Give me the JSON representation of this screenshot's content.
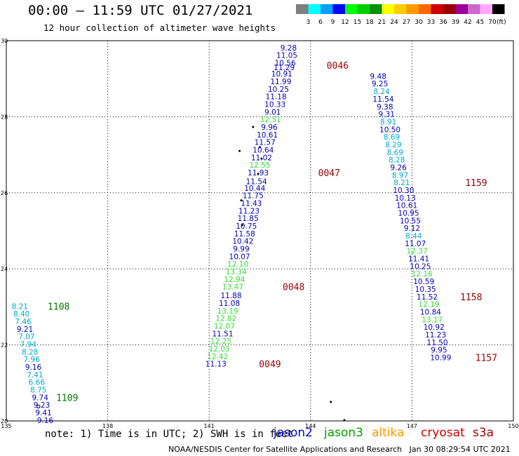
{
  "header": {
    "title": "00:00 – 11:59 UTC 01/27/2021",
    "subtitle": "12 hour collection of altimeter wave heights"
  },
  "legend": {
    "bins": [
      "3",
      "6",
      "9",
      "12",
      "15",
      "18",
      "21",
      "24",
      "27",
      "30",
      "33",
      "36",
      "39",
      "42",
      "45",
      "70"
    ],
    "colors": [
      "#7f7f7f",
      "#00ffff",
      "#00a0ff",
      "#0000ff",
      "#00ff00",
      "#00cc00",
      "#009000",
      "#ffff00",
      "#ffcc00",
      "#ff9900",
      "#ff6600",
      "#cc0000",
      "#990000",
      "#990099",
      "#cc66cc",
      "#ffaaff",
      "#000000"
    ],
    "unit": "(ft)"
  },
  "footer": {
    "note": "note: 1) Time is in UTC; 2) SWH is in feet",
    "credit": "NOAA/NESDIS Center for Satellite Applications and Research   Jan 30 08:29:54 UTC 2021",
    "satellites": [
      {
        "name": "jason2",
        "color": "#0000cc"
      },
      {
        "name": "jason3",
        "color": "#00a000"
      },
      {
        "name": "altika",
        "color": "#ff9900"
      },
      {
        "name": "cryosat",
        "color": "#cc0000"
      },
      {
        "name": "s3a",
        "color": "#990000"
      }
    ]
  },
  "chart_data": {
    "type": "scatter",
    "xlim": [
      135,
      150
    ],
    "ylim": [
      20,
      30
    ],
    "x_ticks": [
      "135",
      "138",
      "141",
      "144",
      "147",
      "150"
    ],
    "y_ticks": [
      "20",
      "22",
      "24",
      "26",
      "28",
      "30"
    ],
    "grid": true,
    "color_map": {
      "dark-blue": "#0000bb",
      "cyan": "#00aacc",
      "light-green": "#33dd33",
      "dark-red": "#990000",
      "dark-green": "#007700"
    },
    "tracks": [
      {
        "name": "track-a",
        "points": [
          {
            "lon": 143.35,
            "lat": 29.82,
            "v": "9.28",
            "c": "dark-blue"
          },
          {
            "lon": 143.3,
            "lat": 29.62,
            "v": "11.05",
            "c": "dark-blue"
          },
          {
            "lon": 143.25,
            "lat": 29.42,
            "v": "10.56",
            "c": "dark-blue"
          },
          {
            "lon": 143.22,
            "lat": 29.3,
            "v": "11.29",
            "c": "dark-blue"
          },
          {
            "lon": 143.15,
            "lat": 29.13,
            "v": "10.91",
            "c": "dark-blue"
          },
          {
            "lon": 143.12,
            "lat": 28.93,
            "v": "11.99",
            "c": "dark-blue"
          },
          {
            "lon": 143.05,
            "lat": 28.73,
            "v": "10.25",
            "c": "dark-blue"
          },
          {
            "lon": 142.98,
            "lat": 28.53,
            "v": "11.18",
            "c": "dark-blue"
          },
          {
            "lon": 142.95,
            "lat": 28.33,
            "v": "10.33",
            "c": "dark-blue"
          },
          {
            "lon": 142.88,
            "lat": 28.13,
            "v": "9.01",
            "c": "dark-blue"
          },
          {
            "lon": 142.82,
            "lat": 27.93,
            "v": "12.51",
            "c": "light-green"
          },
          {
            "lon": 142.78,
            "lat": 27.73,
            "v": "9.96",
            "c": "dark-blue"
          },
          {
            "lon": 142.72,
            "lat": 27.53,
            "v": "10.61",
            "c": "dark-blue"
          },
          {
            "lon": 142.65,
            "lat": 27.33,
            "v": "11.57",
            "c": "dark-blue"
          },
          {
            "lon": 142.6,
            "lat": 27.13,
            "v": "10.64",
            "c": "dark-blue"
          },
          {
            "lon": 142.55,
            "lat": 26.93,
            "v": "11.02",
            "c": "dark-blue"
          },
          {
            "lon": 142.5,
            "lat": 26.73,
            "v": "12.55",
            "c": "light-green"
          },
          {
            "lon": 142.45,
            "lat": 26.53,
            "v": "11.93",
            "c": "dark-blue"
          },
          {
            "lon": 142.4,
            "lat": 26.3,
            "v": "11.54",
            "c": "dark-blue"
          },
          {
            "lon": 142.35,
            "lat": 26.13,
            "v": "10.44",
            "c": "dark-blue"
          },
          {
            "lon": 142.3,
            "lat": 25.93,
            "v": "11.75",
            "c": "dark-blue"
          },
          {
            "lon": 142.25,
            "lat": 25.73,
            "v": "11.43",
            "c": "dark-blue"
          },
          {
            "lon": 142.18,
            "lat": 25.53,
            "v": "11.23",
            "c": "dark-blue"
          },
          {
            "lon": 142.15,
            "lat": 25.33,
            "v": "11.85",
            "c": "dark-blue"
          },
          {
            "lon": 142.1,
            "lat": 25.13,
            "v": "10.75",
            "c": "dark-blue"
          },
          {
            "lon": 142.05,
            "lat": 24.93,
            "v": "11.58",
            "c": "dark-blue"
          },
          {
            "lon": 142.0,
            "lat": 24.73,
            "v": "10.42",
            "c": "dark-blue"
          },
          {
            "lon": 141.95,
            "lat": 24.53,
            "v": "9.99",
            "c": "dark-blue"
          },
          {
            "lon": 141.9,
            "lat": 24.33,
            "v": "10.07",
            "c": "dark-blue"
          },
          {
            "lon": 141.85,
            "lat": 24.13,
            "v": "12.10",
            "c": "light-green"
          },
          {
            "lon": 141.8,
            "lat": 23.93,
            "v": "13.34",
            "c": "light-green"
          },
          {
            "lon": 141.75,
            "lat": 23.73,
            "v": "12.94",
            "c": "light-green"
          },
          {
            "lon": 141.7,
            "lat": 23.53,
            "v": "13.47",
            "c": "light-green"
          },
          {
            "lon": 141.65,
            "lat": 23.3,
            "v": "11.88",
            "c": "dark-blue"
          },
          {
            "lon": 141.6,
            "lat": 23.1,
            "v": "11.08",
            "c": "dark-blue"
          },
          {
            "lon": 141.55,
            "lat": 22.9,
            "v": "13.19",
            "c": "light-green"
          },
          {
            "lon": 141.5,
            "lat": 22.7,
            "v": "12.82",
            "c": "light-green"
          },
          {
            "lon": 141.45,
            "lat": 22.5,
            "v": "12.07",
            "c": "light-green"
          },
          {
            "lon": 141.4,
            "lat": 22.3,
            "v": "11.51",
            "c": "dark-blue"
          },
          {
            "lon": 141.35,
            "lat": 22.1,
            "v": "12.25",
            "c": "light-green"
          },
          {
            "lon": 141.3,
            "lat": 21.9,
            "v": "12.03",
            "c": "light-green"
          },
          {
            "lon": 141.25,
            "lat": 21.7,
            "v": "12.42",
            "c": "light-green"
          },
          {
            "lon": 141.2,
            "lat": 21.5,
            "v": "11.13",
            "c": "dark-blue"
          }
        ]
      },
      {
        "name": "track-b",
        "points": [
          {
            "lon": 146.0,
            "lat": 29.07,
            "v": "9.48",
            "c": "dark-blue"
          },
          {
            "lon": 146.05,
            "lat": 28.87,
            "v": "9.25",
            "c": "dark-blue"
          },
          {
            "lon": 146.1,
            "lat": 28.67,
            "v": "8.24",
            "c": "cyan"
          },
          {
            "lon": 146.15,
            "lat": 28.47,
            "v": "11.54",
            "c": "dark-blue"
          },
          {
            "lon": 146.2,
            "lat": 28.27,
            "v": "9.38",
            "c": "dark-blue"
          },
          {
            "lon": 146.25,
            "lat": 28.07,
            "v": "9.31",
            "c": "dark-blue"
          },
          {
            "lon": 146.3,
            "lat": 27.87,
            "v": "8.91",
            "c": "cyan"
          },
          {
            "lon": 146.35,
            "lat": 27.67,
            "v": "10.50",
            "c": "dark-blue"
          },
          {
            "lon": 146.4,
            "lat": 27.47,
            "v": "8.69",
            "c": "cyan"
          },
          {
            "lon": 146.45,
            "lat": 27.27,
            "v": "8.29",
            "c": "cyan"
          },
          {
            "lon": 146.5,
            "lat": 27.07,
            "v": "8.69",
            "c": "cyan"
          },
          {
            "lon": 146.55,
            "lat": 26.87,
            "v": "8.28",
            "c": "cyan"
          },
          {
            "lon": 146.6,
            "lat": 26.67,
            "v": "9.26",
            "c": "dark-blue"
          },
          {
            "lon": 146.65,
            "lat": 26.47,
            "v": "8.97",
            "c": "cyan"
          },
          {
            "lon": 146.7,
            "lat": 26.27,
            "v": "8.21",
            "c": "cyan"
          },
          {
            "lon": 146.75,
            "lat": 26.07,
            "v": "10.30",
            "c": "dark-blue"
          },
          {
            "lon": 146.8,
            "lat": 25.87,
            "v": "10.13",
            "c": "dark-blue"
          },
          {
            "lon": 146.85,
            "lat": 25.67,
            "v": "10.61",
            "c": "dark-blue"
          },
          {
            "lon": 146.9,
            "lat": 25.47,
            "v": "10.95",
            "c": "dark-blue"
          },
          {
            "lon": 146.95,
            "lat": 25.27,
            "v": "10.55",
            "c": "dark-blue"
          },
          {
            "lon": 147.0,
            "lat": 25.07,
            "v": "9.12",
            "c": "dark-blue"
          },
          {
            "lon": 147.05,
            "lat": 24.87,
            "v": "8.44",
            "c": "cyan"
          },
          {
            "lon": 147.1,
            "lat": 24.67,
            "v": "11.07",
            "c": "dark-blue"
          },
          {
            "lon": 147.15,
            "lat": 24.47,
            "v": "12.37",
            "c": "light-green"
          },
          {
            "lon": 147.2,
            "lat": 24.27,
            "v": "11.41",
            "c": "dark-blue"
          },
          {
            "lon": 147.25,
            "lat": 24.07,
            "v": "10.25",
            "c": "dark-blue"
          },
          {
            "lon": 147.3,
            "lat": 23.87,
            "v": "12.16",
            "c": "light-green"
          },
          {
            "lon": 147.35,
            "lat": 23.67,
            "v": "10.59",
            "c": "dark-blue"
          },
          {
            "lon": 147.4,
            "lat": 23.47,
            "v": "10.35",
            "c": "dark-blue"
          },
          {
            "lon": 147.45,
            "lat": 23.27,
            "v": "11.52",
            "c": "dark-blue"
          },
          {
            "lon": 147.5,
            "lat": 23.07,
            "v": "12.19",
            "c": "light-green"
          },
          {
            "lon": 147.55,
            "lat": 22.87,
            "v": "10.84",
            "c": "dark-blue"
          },
          {
            "lon": 147.6,
            "lat": 22.67,
            "v": "13.17",
            "c": "light-green"
          },
          {
            "lon": 147.65,
            "lat": 22.47,
            "v": "10.92",
            "c": "dark-blue"
          },
          {
            "lon": 147.7,
            "lat": 22.27,
            "v": "11.23",
            "c": "dark-blue"
          },
          {
            "lon": 147.75,
            "lat": 22.07,
            "v": "11.50",
            "c": "dark-blue"
          },
          {
            "lon": 147.8,
            "lat": 21.87,
            "v": "9.95",
            "c": "dark-blue"
          },
          {
            "lon": 147.85,
            "lat": 21.67,
            "v": "10.99",
            "c": "dark-blue"
          }
        ]
      },
      {
        "name": "track-c",
        "points": [
          {
            "lon": 135.4,
            "lat": 23.02,
            "v": "8.21",
            "c": "cyan"
          },
          {
            "lon": 135.45,
            "lat": 22.82,
            "v": "8.40",
            "c": "cyan"
          },
          {
            "lon": 135.5,
            "lat": 22.62,
            "v": "7.46",
            "c": "cyan"
          },
          {
            "lon": 135.55,
            "lat": 22.42,
            "v": "9.21",
            "c": "dark-blue"
          },
          {
            "lon": 135.6,
            "lat": 22.22,
            "v": "7.07",
            "c": "cyan"
          },
          {
            "lon": 135.65,
            "lat": 22.02,
            "v": "7.94",
            "c": "cyan"
          },
          {
            "lon": 135.7,
            "lat": 21.82,
            "v": "8.28",
            "c": "cyan"
          },
          {
            "lon": 135.75,
            "lat": 21.62,
            "v": "7.96",
            "c": "cyan"
          },
          {
            "lon": 135.8,
            "lat": 21.42,
            "v": "9.16",
            "c": "dark-blue"
          },
          {
            "lon": 135.85,
            "lat": 21.22,
            "v": "7.41",
            "c": "cyan"
          },
          {
            "lon": 135.9,
            "lat": 21.02,
            "v": "6.66",
            "c": "cyan"
          },
          {
            "lon": 135.95,
            "lat": 20.82,
            "v": "8.75",
            "c": "cyan"
          },
          {
            "lon": 136.0,
            "lat": 20.62,
            "v": "9.74",
            "c": "dark-blue"
          },
          {
            "lon": 136.05,
            "lat": 20.42,
            "v": "9.23",
            "c": "dark-blue"
          },
          {
            "lon": 136.1,
            "lat": 20.22,
            "v": "9.41",
            "c": "dark-blue"
          },
          {
            "lon": 136.15,
            "lat": 20.02,
            "v": "9.16",
            "c": "dark-blue"
          }
        ]
      }
    ],
    "time_labels": [
      {
        "lon": 144.8,
        "lat": 29.35,
        "v": "0046",
        "c": "dark-red"
      },
      {
        "lon": 144.55,
        "lat": 26.53,
        "v": "0047",
        "c": "dark-red"
      },
      {
        "lon": 143.5,
        "lat": 23.53,
        "v": "0048",
        "c": "dark-red"
      },
      {
        "lon": 142.8,
        "lat": 21.5,
        "v": "0049",
        "c": "dark-red"
      },
      {
        "lon": 148.9,
        "lat": 26.27,
        "v": "1159",
        "c": "dark-red"
      },
      {
        "lon": 148.75,
        "lat": 23.27,
        "v": "1158",
        "c": "dark-red"
      },
      {
        "lon": 149.2,
        "lat": 21.67,
        "v": "1157",
        "c": "dark-red"
      },
      {
        "lon": 136.55,
        "lat": 23.02,
        "v": "1108",
        "c": "dark-green"
      },
      {
        "lon": 136.8,
        "lat": 20.62,
        "v": "1109",
        "c": "dark-green"
      }
    ]
  }
}
